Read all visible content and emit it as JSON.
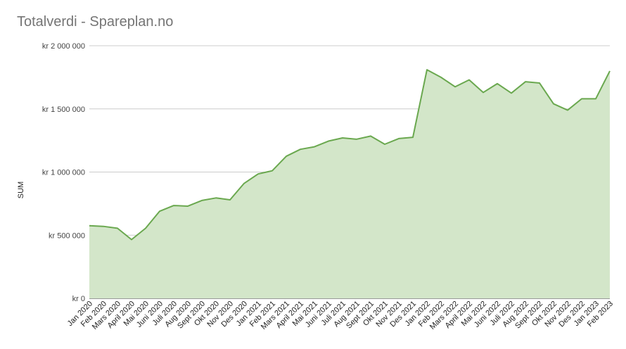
{
  "chart_data": {
    "type": "area",
    "title": "Totalverdi - Spareplan.no",
    "xlabel": "",
    "ylabel": "SUM",
    "ylim": [
      0,
      2000000
    ],
    "yticks": [
      {
        "value": 0,
        "label": "kr 0"
      },
      {
        "value": 500000,
        "label": "kr 500 000"
      },
      {
        "value": 1000000,
        "label": "kr 1 000 000"
      },
      {
        "value": 1500000,
        "label": "kr 1 500 000"
      },
      {
        "value": 2000000,
        "label": "kr 2 000 000"
      }
    ],
    "grid": true,
    "legend": "none",
    "colors": {
      "line": "#6aa84f",
      "fill": "#d3e6c9",
      "grid": "#cccccc",
      "axis": "#333333",
      "text": "#444444"
    },
    "categories": [
      "Jan 2020",
      "Feb 2020",
      "Mars 2020",
      "April 2020",
      "Mai 2020",
      "Juni 2020",
      "Juli 2020",
      "Aug 2020",
      "Sept 2020",
      "Okt 2020",
      "Nov 2020",
      "Des 2020",
      "Jan 2021",
      "Feb 2021",
      "Mars 2021",
      "April 2021",
      "Mai 2021",
      "Juni 2021",
      "Juli 2021",
      "Aug 2021",
      "Sept 2021",
      "Okt 2021",
      "Nov 2021",
      "Des 2021",
      "Jan 2022",
      "Feb 2022",
      "Mars 2022",
      "April 2022",
      "Mai 2022",
      "Juni 2022",
      "Juli 2022",
      "Aug 2022",
      "Sept 2022",
      "Okt 2022",
      "Nov 2022",
      "Des 2022",
      "Jan 2023",
      "Feb 2023"
    ],
    "series": [
      {
        "values": [
          575000,
          570000,
          555000,
          465000,
          555000,
          690000,
          735000,
          730000,
          775000,
          795000,
          780000,
          910000,
          985000,
          1010000,
          1125000,
          1180000,
          1200000,
          1245000,
          1270000,
          1260000,
          1285000,
          1220000,
          1265000,
          1275000,
          1810000,
          1750000,
          1675000,
          1730000,
          1630000,
          1700000,
          1625000,
          1715000,
          1705000,
          1540000,
          1490000,
          1580000,
          1580000,
          1800000
        ]
      }
    ]
  }
}
